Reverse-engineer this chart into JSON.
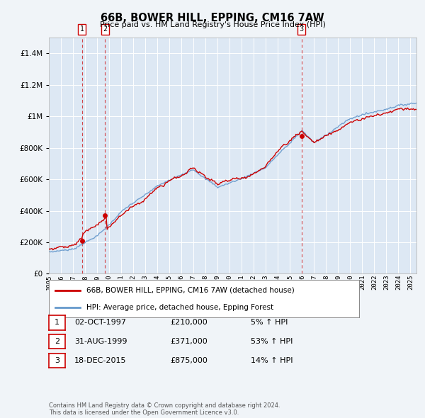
{
  "title": "66B, BOWER HILL, EPPING, CM16 7AW",
  "subtitle": "Price paid vs. HM Land Registry's House Price Index (HPI)",
  "legend_line1": "66B, BOWER HILL, EPPING, CM16 7AW (detached house)",
  "legend_line2": "HPI: Average price, detached house, Epping Forest",
  "footnote1": "Contains HM Land Registry data © Crown copyright and database right 2024.",
  "footnote2": "This data is licensed under the Open Government Licence v3.0.",
  "transactions": [
    {
      "num": 1,
      "date": "02-OCT-1997",
      "price": 210000,
      "pct": "5%",
      "year": 1997.75
    },
    {
      "num": 2,
      "date": "31-AUG-1999",
      "price": 371000,
      "pct": "53%",
      "year": 1999.67
    },
    {
      "num": 3,
      "date": "18-DEC-2015",
      "price": 875000,
      "pct": "14%",
      "year": 2015.96
    }
  ],
  "line_color_red": "#cc0000",
  "line_color_blue": "#6699cc",
  "background_color": "#f0f4f8",
  "plot_bg": "#dde8f4",
  "ylim": [
    0,
    1500000
  ],
  "yticks": [
    0,
    200000,
    400000,
    600000,
    800000,
    1000000,
    1200000,
    1400000
  ],
  "xlim_start": 1995.0,
  "xlim_end": 2025.5,
  "xticks": [
    1995,
    1996,
    1997,
    1998,
    1999,
    2000,
    2001,
    2002,
    2003,
    2004,
    2005,
    2006,
    2007,
    2008,
    2009,
    2010,
    2011,
    2012,
    2013,
    2014,
    2015,
    2016,
    2017,
    2018,
    2019,
    2020,
    2021,
    2022,
    2023,
    2024,
    2025
  ]
}
